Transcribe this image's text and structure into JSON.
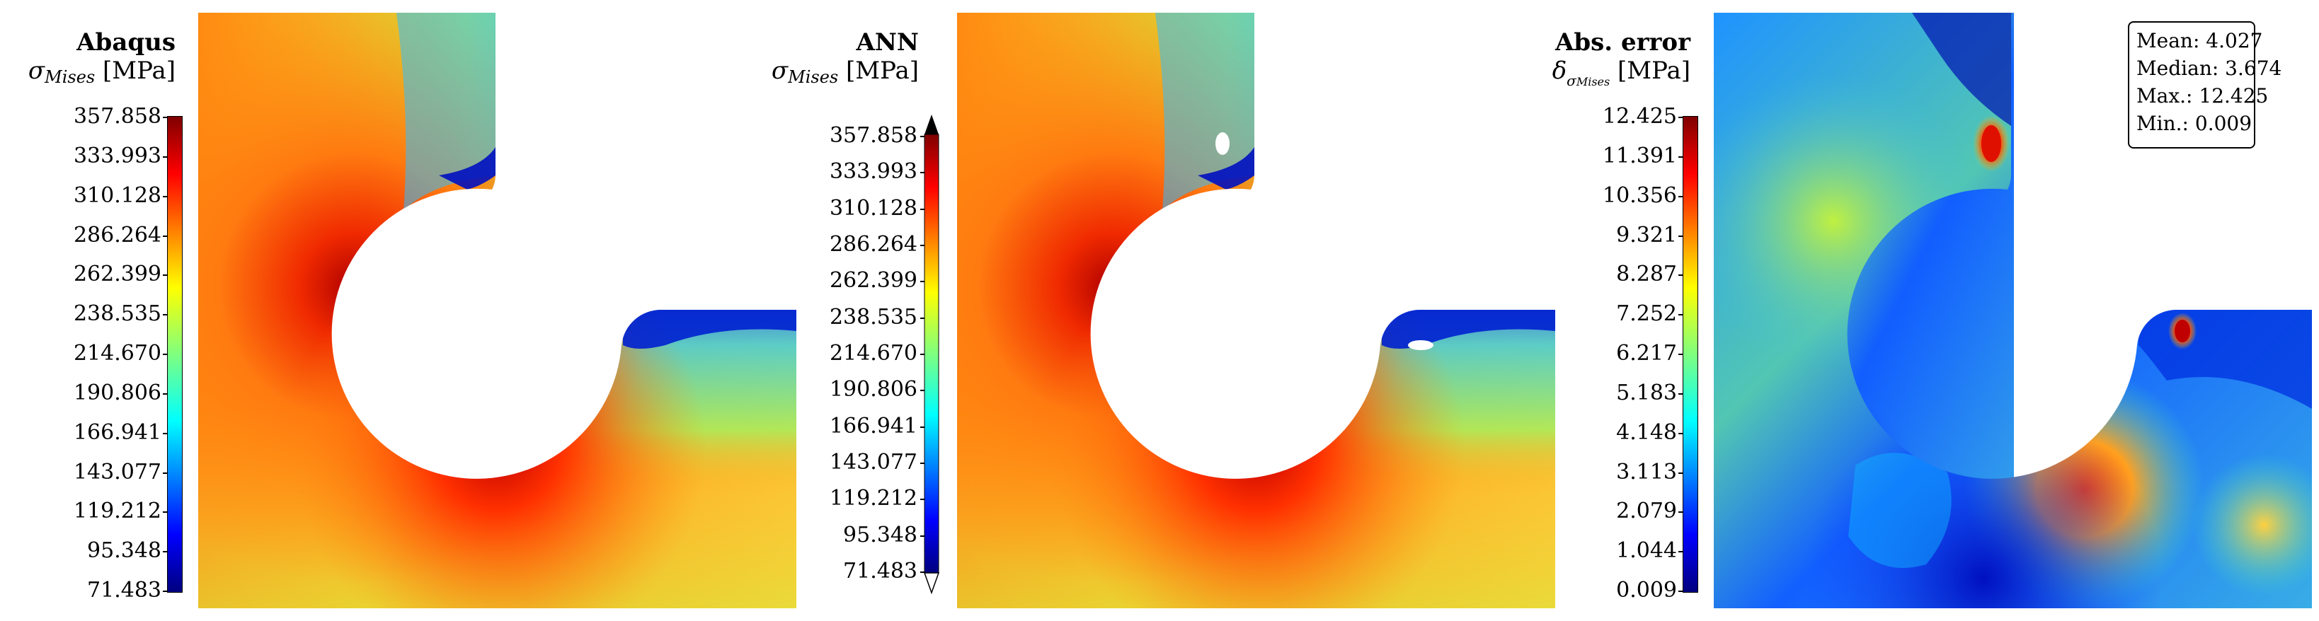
{
  "panels": [
    {
      "id": "abaqus",
      "title": "Abaqus",
      "symbol": "σ",
      "subscript": "Mises",
      "unit": "[MPa]",
      "ticks": [
        "357.858",
        "333.993",
        "310.128",
        "286.264",
        "262.399",
        "238.535",
        "214.670",
        "190.806",
        "166.941",
        "143.077",
        "119.212",
        "95.348",
        "71.483"
      ]
    },
    {
      "id": "ann",
      "title": "ANN",
      "symbol": "σ",
      "subscript": "Mises",
      "unit": "[MPa]",
      "ticks": [
        "357.858",
        "333.993",
        "310.128",
        "286.264",
        "262.399",
        "238.535",
        "214.670",
        "190.806",
        "166.941",
        "143.077",
        "119.212",
        "95.348",
        "71.483"
      ]
    },
    {
      "id": "error",
      "title": "Abs. error",
      "symbol": "δ",
      "subsymbol": "σ",
      "subscript": "Mises",
      "unit": "[MPa]",
      "ticks": [
        "12.425",
        "11.391",
        "10.356",
        "9.321",
        "8.287",
        "7.252",
        "6.217",
        "5.183",
        "4.148",
        "3.113",
        "2.079",
        "1.044",
        "0.009"
      ]
    }
  ],
  "stats": {
    "mean": "Mean: 4.027",
    "median": "Median: 3.674",
    "max": "Max.: 12.425",
    "min": "Min.: 0.009"
  },
  "chart_data": [
    {
      "type": "heatmap",
      "title": "Abaqus",
      "colorbar_label": "σMises [MPa]",
      "colormap": "jet",
      "range": [
        71.483,
        357.858
      ],
      "colorbar_ticks": [
        357.858,
        333.993,
        310.128,
        286.264,
        262.399,
        238.535,
        214.67,
        190.806,
        166.941,
        143.077,
        119.212,
        95.348,
        71.483
      ]
    },
    {
      "type": "heatmap",
      "title": "ANN",
      "colorbar_label": "σMises [MPa]",
      "colormap": "jet",
      "range": [
        71.483,
        357.858
      ],
      "colorbar_ticks": [
        357.858,
        333.993,
        310.128,
        286.264,
        262.399,
        238.535,
        214.67,
        190.806,
        166.941,
        143.077,
        119.212,
        95.348,
        71.483
      ]
    },
    {
      "type": "heatmap",
      "title": "Abs. error",
      "colorbar_label": "δσMises [MPa]",
      "colormap": "jet",
      "range": [
        0.009,
        12.425
      ],
      "colorbar_ticks": [
        12.425,
        11.391,
        10.356,
        9.321,
        8.287,
        7.252,
        6.217,
        5.183,
        4.148,
        3.113,
        2.079,
        1.044,
        0.009
      ],
      "statistics": {
        "mean": 4.027,
        "median": 3.674,
        "max": 12.425,
        "min": 0.009
      }
    }
  ]
}
